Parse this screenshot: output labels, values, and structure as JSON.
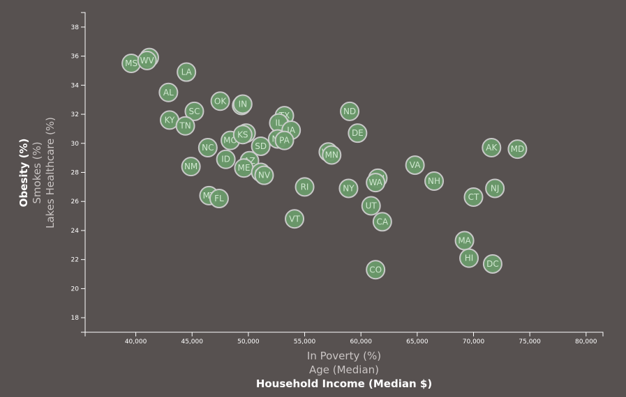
{
  "chart_data": {
    "type": "scatter",
    "xlim": [
      35500,
      81500
    ],
    "ylim": [
      17,
      39
    ],
    "x_ticks": [
      40000,
      45000,
      50000,
      55000,
      60000,
      65000,
      70000,
      75000,
      80000
    ],
    "x_tick_labels": [
      "40,000",
      "45,000",
      "50,000",
      "55,000",
      "60,000",
      "65,000",
      "70,000",
      "75,000",
      "80,000"
    ],
    "y_ticks": [
      18,
      20,
      22,
      24,
      26,
      28,
      30,
      32,
      34,
      36,
      38
    ],
    "y_tick_labels": [
      "18",
      "20",
      "22",
      "24",
      "26",
      "28",
      "30",
      "32",
      "34",
      "36",
      "38"
    ],
    "x_axis_titles": [
      {
        "label": "In Poverty (%)",
        "active": false
      },
      {
        "label": "Age (Median)",
        "active": false
      },
      {
        "label": "Household Income (Median $)",
        "active": true
      }
    ],
    "y_axis_titles": [
      {
        "label": "Obesity (%)",
        "active": true
      },
      {
        "label": "Smokes (%)",
        "active": false
      },
      {
        "label": "Lakes Healthcare (%)",
        "active": false
      }
    ],
    "points": [
      {
        "abbr": "MS",
        "x": 39600,
        "y": 35.5
      },
      {
        "abbr": "AR",
        "x": 41200,
        "y": 35.9
      },
      {
        "abbr": "WV",
        "x": 41000,
        "y": 35.7
      },
      {
        "abbr": "LA",
        "x": 44500,
        "y": 34.9
      },
      {
        "abbr": "AL",
        "x": 42900,
        "y": 33.5
      },
      {
        "abbr": "OK",
        "x": 47500,
        "y": 32.9
      },
      {
        "abbr": "OH",
        "x": 49400,
        "y": 32.6
      },
      {
        "abbr": "IN",
        "x": 49500,
        "y": 32.7
      },
      {
        "abbr": "SC",
        "x": 45200,
        "y": 32.2
      },
      {
        "abbr": "KY",
        "x": 43000,
        "y": 31.6
      },
      {
        "abbr": "TN",
        "x": 44400,
        "y": 31.2
      },
      {
        "abbr": "ND",
        "x": 59000,
        "y": 32.2
      },
      {
        "abbr": "TX",
        "x": 53200,
        "y": 31.9
      },
      {
        "abbr": "DE",
        "x": 59700,
        "y": 30.7
      },
      {
        "abbr": "MO",
        "x": 48400,
        "y": 30.2
      },
      {
        "abbr": "MI",
        "x": 49800,
        "y": 30.7
      },
      {
        "abbr": "KS",
        "x": 49500,
        "y": 30.6
      },
      {
        "abbr": "WI",
        "x": 52900,
        "y": 31.2
      },
      {
        "abbr": "IL",
        "x": 52700,
        "y": 31.4
      },
      {
        "abbr": "IA",
        "x": 53800,
        "y": 30.9
      },
      {
        "abbr": "NE",
        "x": 52600,
        "y": 30.3
      },
      {
        "abbr": "PA",
        "x": 53200,
        "y": 30.2
      },
      {
        "abbr": "NC",
        "x": 46400,
        "y": 29.7
      },
      {
        "abbr": "SD",
        "x": 51100,
        "y": 29.8
      },
      {
        "abbr": "WY",
        "x": 57100,
        "y": 29.4
      },
      {
        "abbr": "MN",
        "x": 57400,
        "y": 29.2
      },
      {
        "abbr": "ID",
        "x": 48000,
        "y": 28.9
      },
      {
        "abbr": "AZ",
        "x": 50100,
        "y": 28.8
      },
      {
        "abbr": "ME",
        "x": 49600,
        "y": 28.3
      },
      {
        "abbr": "NM",
        "x": 44900,
        "y": 28.4
      },
      {
        "abbr": "OR",
        "x": 51100,
        "y": 28.0
      },
      {
        "abbr": "NV",
        "x": 51400,
        "y": 27.8
      },
      {
        "abbr": "AK",
        "x": 71600,
        "y": 29.7
      },
      {
        "abbr": "MD",
        "x": 73900,
        "y": 29.6
      },
      {
        "abbr": "VA",
        "x": 64800,
        "y": 28.5
      },
      {
        "abbr": "MN",
        "x": 61500,
        "y": 27.6
      },
      {
        "abbr": "WA",
        "x": 61300,
        "y": 27.3
      },
      {
        "abbr": "NH",
        "x": 66500,
        "y": 27.4
      },
      {
        "abbr": "RI",
        "x": 55000,
        "y": 27.0
      },
      {
        "abbr": "NY",
        "x": 58900,
        "y": 26.9
      },
      {
        "abbr": "NJ",
        "x": 71900,
        "y": 26.9
      },
      {
        "abbr": "MT",
        "x": 46500,
        "y": 26.4
      },
      {
        "abbr": "FL",
        "x": 47400,
        "y": 26.2
      },
      {
        "abbr": "CT",
        "x": 70000,
        "y": 26.3
      },
      {
        "abbr": "UT",
        "x": 60900,
        "y": 25.7
      },
      {
        "abbr": "VT",
        "x": 54100,
        "y": 24.8
      },
      {
        "abbr": "CA",
        "x": 61900,
        "y": 24.6
      },
      {
        "abbr": "MA",
        "x": 69200,
        "y": 23.3
      },
      {
        "abbr": "HI",
        "x": 69600,
        "y": 22.1
      },
      {
        "abbr": "DC",
        "x": 71700,
        "y": 21.7
      },
      {
        "abbr": "CO",
        "x": 61300,
        "y": 21.3
      }
    ]
  }
}
